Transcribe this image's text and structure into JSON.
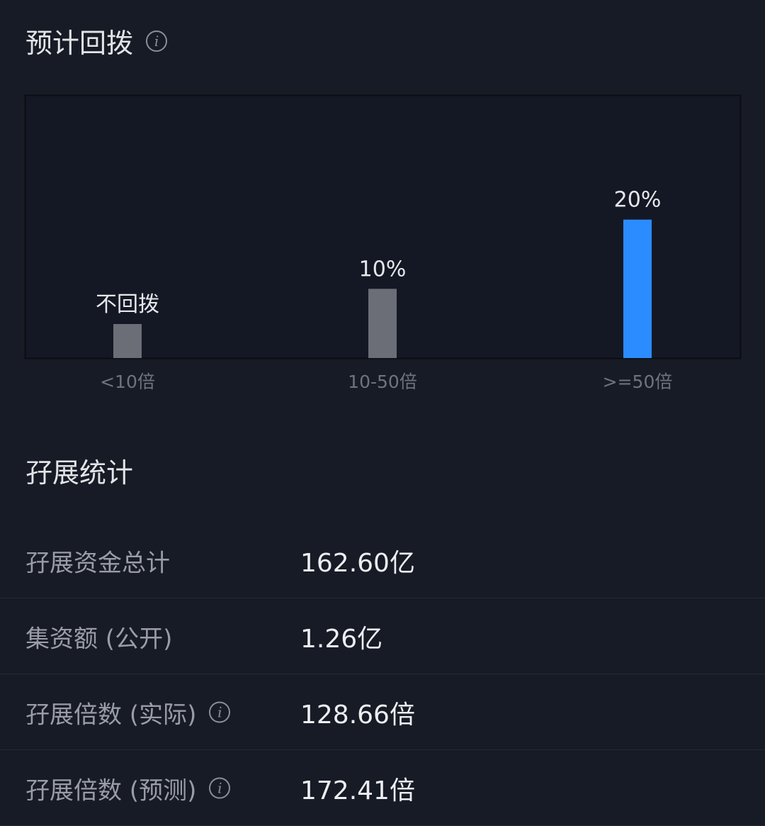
{
  "section1": {
    "title": "预计回拨",
    "info_icon": "info-icon"
  },
  "chart_data": {
    "type": "bar",
    "categories": [
      "<10倍",
      "10-50倍",
      ">=50倍"
    ],
    "values": [
      0,
      10,
      20
    ],
    "data_labels": [
      "不回拨",
      "10%",
      "20%"
    ],
    "colors": [
      "#6b6e76",
      "#6b6e76",
      "#2b8cff"
    ],
    "title": "",
    "xlabel": "",
    "ylabel": "",
    "ylim": [
      0,
      38
    ],
    "grid": false
  },
  "section2": {
    "title": "孖展统计",
    "rows": [
      {
        "label": "孖展资金总计",
        "value": "162.60亿",
        "info": false
      },
      {
        "label": "集资额 (公开)",
        "value": "1.26亿",
        "info": false
      },
      {
        "label": "孖展倍数 (实际)",
        "value": "128.66倍",
        "info": true
      },
      {
        "label": "孖展倍数 (预测)",
        "value": "172.41倍",
        "info": true
      }
    ]
  }
}
